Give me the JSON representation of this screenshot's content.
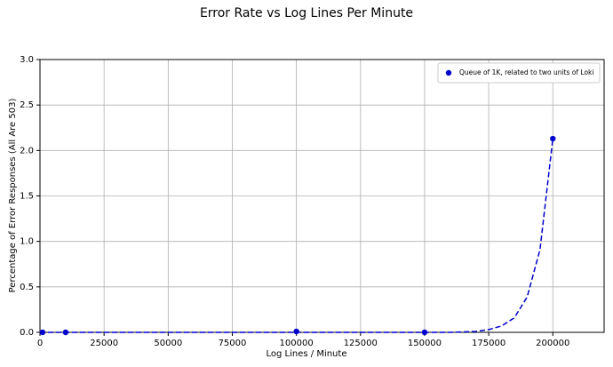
{
  "chart_data": {
    "type": "scatter",
    "title": "Error Rate vs Log Lines Per Minute",
    "xlabel": "Log Lines / Minute",
    "ylabel": "Percentage of Error Responses (All Are 503)",
    "xlim": [
      0,
      220000
    ],
    "xticks": [
      0,
      25000,
      50000,
      75000,
      100000,
      125000,
      150000,
      175000,
      200000
    ],
    "ylim": [
      0,
      3
    ],
    "yticks": [
      {
        "value": 0,
        "label": "0.0"
      },
      0.5,
      {
        "value": 1,
        "label": "1.0"
      },
      1.5,
      {
        "value": 2,
        "label": "2.0"
      },
      2.5,
      {
        "value": 3,
        "label": "3.0"
      }
    ],
    "grid": true,
    "legend": "upper right",
    "series": [
      {
        "name": "Queue of 1K, related to two units of Loki",
        "color": "#0000cc",
        "x": [
          1000,
          10000,
          100000,
          150000,
          200000
        ],
        "values": [
          0,
          0,
          0.01,
          0,
          2.13
        ]
      },
      {
        "color": "#0000cc",
        "linestyle": "dashed",
        "x": [
          0,
          50000,
          100000,
          150000,
          160000,
          170000,
          175000,
          180000,
          185000,
          190000,
          195000,
          200000
        ],
        "values": [
          0,
          0,
          0,
          0,
          0,
          0.01,
          0.03,
          0.07,
          0.16,
          0.39,
          0.91,
          2.13
        ]
      }
    ]
  }
}
